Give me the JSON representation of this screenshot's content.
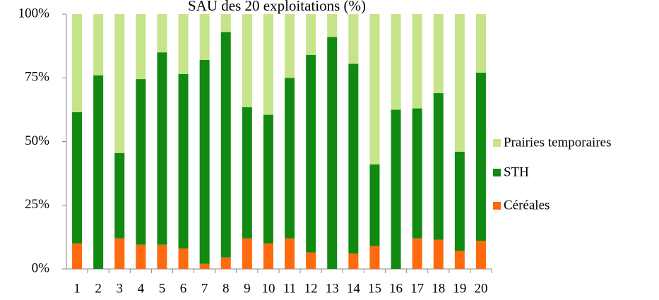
{
  "chart_data": {
    "type": "stacked_bar",
    "title": "SAU des 20 exploitations (%)",
    "categories": [
      "1",
      "2",
      "3",
      "4",
      "5",
      "6",
      "7",
      "8",
      "9",
      "10",
      "11",
      "12",
      "13",
      "14",
      "15",
      "16",
      "17",
      "18",
      "19",
      "20"
    ],
    "series": [
      {
        "name": "Céréales",
        "color": "#ff6a10",
        "values": [
          10,
          0,
          12,
          9.5,
          9.5,
          8,
          2,
          4.5,
          12,
          10,
          12,
          6.5,
          0,
          6,
          9,
          0,
          12,
          11.5,
          7,
          11
        ]
      },
      {
        "name": "STH",
        "color": "#128a12",
        "values": [
          51.5,
          76,
          33.5,
          65,
          75.5,
          68.5,
          80,
          88.5,
          51.5,
          50.5,
          63,
          77.5,
          91,
          74.5,
          32,
          62.5,
          51,
          57.5,
          39,
          66
        ]
      },
      {
        "name": "Prairies temporaires",
        "color": "#c6e48a",
        "values": [
          38.5,
          24,
          54.5,
          25.5,
          15,
          23.5,
          18,
          7,
          36.5,
          39.5,
          25,
          16,
          9,
          19.5,
          59,
          37.5,
          37,
          31,
          54,
          23
        ]
      }
    ],
    "ylim": [
      0,
      100
    ],
    "yticks": [
      {
        "value": 0,
        "label": "0%"
      },
      {
        "value": 25,
        "label": "25%"
      },
      {
        "value": 50,
        "label": "50%"
      },
      {
        "value": 75,
        "label": "75%"
      },
      {
        "value": 100,
        "label": "100%"
      }
    ],
    "grid": false,
    "legend": "right"
  }
}
